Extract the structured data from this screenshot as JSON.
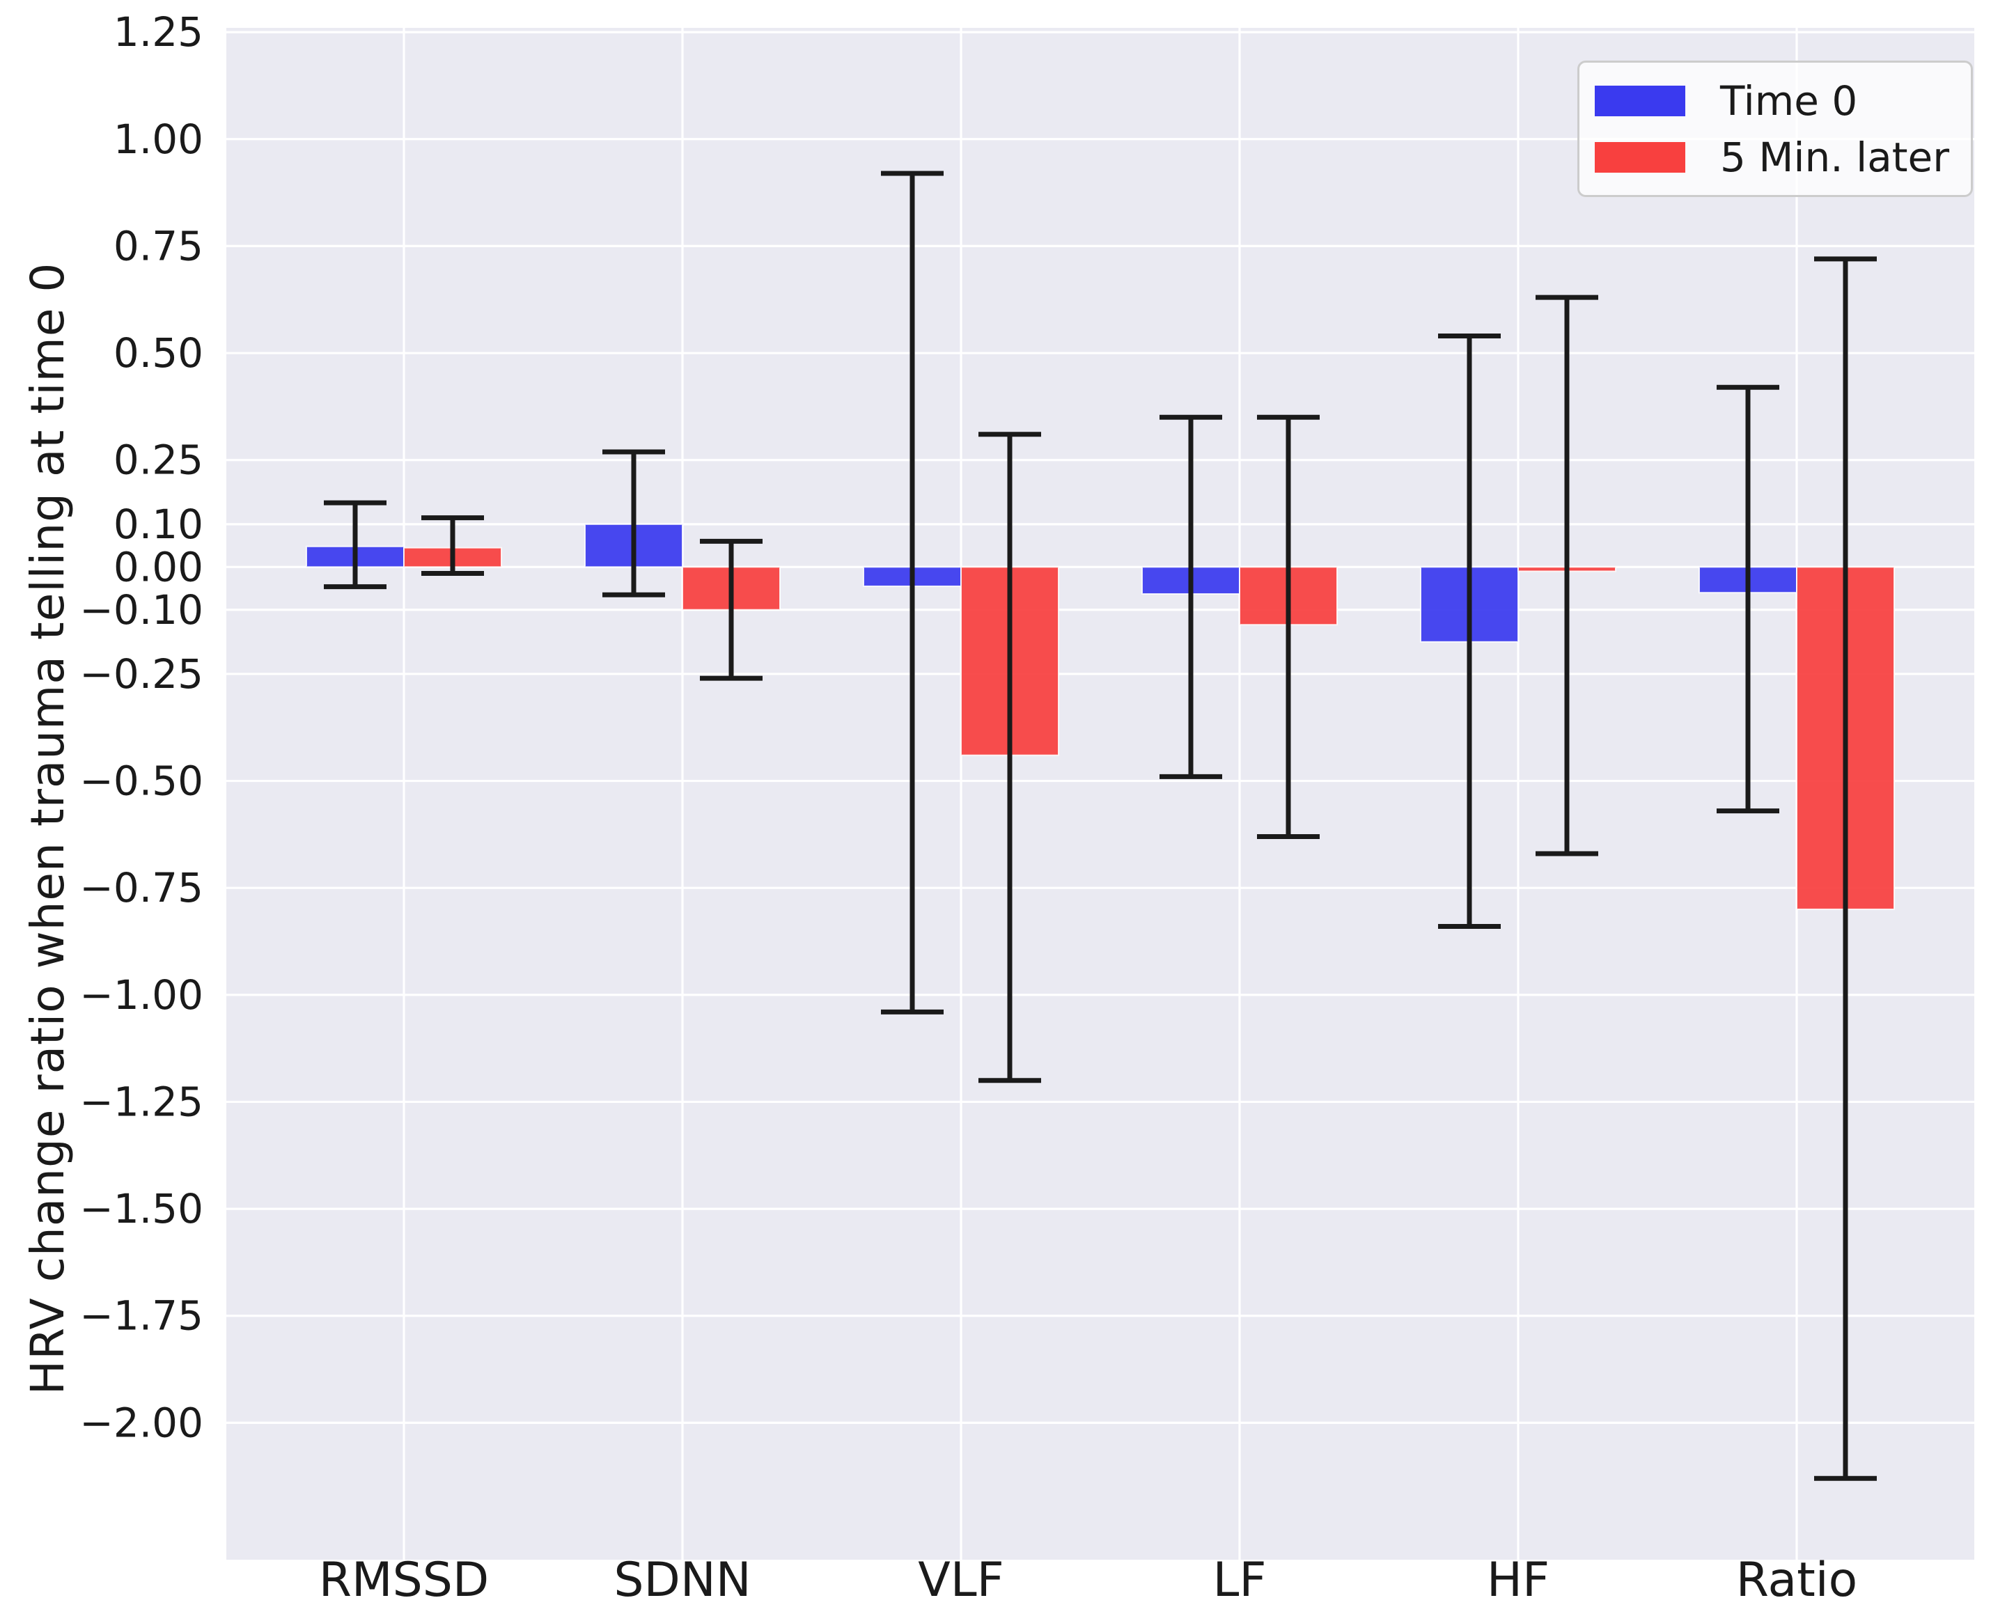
{
  "figure": {
    "background": "#ffffff",
    "plot_background": "#eaeaf2",
    "grid_color": "#ffffff",
    "text_color": "#1a1a1a",
    "errorbar_color": "#1a1a1a"
  },
  "legend": {
    "items": [
      {
        "label": "Time 0",
        "color": "#3a3aef"
      },
      {
        "label": "5 Min. later",
        "color": "#f8403f"
      }
    ]
  },
  "chart_data": {
    "type": "bar",
    "title": "",
    "xlabel": "",
    "ylabel": "HRV change ratio when trauma telling at time 0",
    "categories": [
      "RMSSD",
      "SDNN",
      "VLF",
      "LF",
      "HF",
      "Ratio"
    ],
    "series": [
      {
        "name": "Time 0",
        "color": "#3a3aef",
        "values": [
          0.048,
          0.1,
          -0.045,
          -0.063,
          -0.175,
          -0.06
        ],
        "err_lo": [
          -0.046,
          -0.065,
          -1.04,
          -0.49,
          -0.84,
          -0.57
        ],
        "err_hi": [
          0.15,
          0.269,
          0.92,
          0.35,
          0.54,
          0.42
        ]
      },
      {
        "name": "5 Min. later",
        "color": "#f8403f",
        "values": [
          0.045,
          -0.1,
          -0.44,
          -0.135,
          -0.01,
          -0.8
        ],
        "err_lo": [
          -0.015,
          -0.26,
          -1.2,
          -0.63,
          -0.67,
          -2.13
        ],
        "err_hi": [
          0.115,
          0.06,
          0.31,
          0.35,
          0.63,
          0.72
        ]
      }
    ],
    "y_ticks": [
      1.25,
      1.0,
      0.75,
      0.5,
      0.25,
      0.1,
      0.0,
      -0.1,
      -0.25,
      -0.5,
      -0.75,
      -1.0,
      -1.25,
      -1.5,
      -1.75,
      -2.0
    ],
    "y_tick_labels": [
      "1.25",
      "1.00",
      "0.75",
      "0.50",
      "0.25",
      "0.10",
      "0.00",
      "−0.10",
      "−0.25",
      "−0.50",
      "−0.75",
      "−1.00",
      "−1.25",
      "−1.50",
      "−1.75",
      "−2.00"
    ],
    "ylim": [
      -2.32,
      1.26
    ],
    "grid": true,
    "legend_position": "upper right"
  }
}
